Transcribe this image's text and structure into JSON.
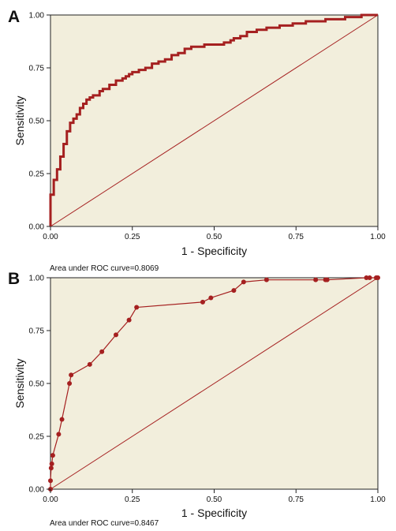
{
  "chart_data": [
    {
      "type": "line",
      "panel_label": "A",
      "xlabel": "1 - Specificity",
      "ylabel": "Sensitivity",
      "xlim": [
        0,
        1
      ],
      "ylim": [
        0,
        1
      ],
      "x_ticks": [
        "0.00",
        "0.25",
        "0.50",
        "0.75",
        "1.00"
      ],
      "y_ticks": [
        "0.00",
        "0.25",
        "0.50",
        "0.75",
        "1.00"
      ],
      "annotation": "Area under ROC curve=0.8069",
      "grid": false,
      "background_color": "#f2eedc",
      "curve_color": "#a52020",
      "reference_line": true,
      "step_curve": true,
      "series": [
        {
          "x": [
            0,
            0,
            0.01,
            0.01,
            0.02,
            0.02,
            0.03,
            0.03,
            0.04,
            0.04,
            0.05,
            0.05,
            0.06,
            0.06,
            0.07,
            0.08,
            0.09,
            0.1,
            0.11,
            0.12,
            0.13,
            0.15,
            0.16,
            0.18,
            0.2,
            0.22,
            0.23,
            0.24,
            0.25,
            0.27,
            0.29,
            0.31,
            0.33,
            0.35,
            0.37,
            0.39,
            0.41,
            0.43,
            0.45,
            0.47,
            0.49,
            0.51,
            0.53,
            0.55,
            0.56,
            0.58,
            0.6,
            0.63,
            0.66,
            0.7,
            0.74,
            0.78,
            0.84,
            0.9,
            0.95,
            1.0
          ],
          "y": [
            0,
            0.15,
            0.19,
            0.22,
            0.24,
            0.27,
            0.3,
            0.33,
            0.36,
            0.39,
            0.42,
            0.45,
            0.47,
            0.49,
            0.51,
            0.53,
            0.56,
            0.58,
            0.6,
            0.61,
            0.62,
            0.64,
            0.65,
            0.67,
            0.69,
            0.7,
            0.71,
            0.72,
            0.73,
            0.74,
            0.75,
            0.77,
            0.78,
            0.79,
            0.81,
            0.82,
            0.84,
            0.85,
            0.85,
            0.86,
            0.86,
            0.86,
            0.87,
            0.88,
            0.89,
            0.9,
            0.92,
            0.93,
            0.94,
            0.95,
            0.96,
            0.97,
            0.98,
            0.99,
            1.0,
            1.0
          ]
        }
      ]
    },
    {
      "type": "line",
      "panel_label": "B",
      "xlabel": "1 - Specificity",
      "ylabel": "Sensitivity",
      "xlim": [
        0,
        1
      ],
      "ylim": [
        0,
        1
      ],
      "x_ticks": [
        "0.00",
        "0.25",
        "0.50",
        "0.75",
        "1.00"
      ],
      "y_ticks": [
        "0.00",
        "0.25",
        "0.50",
        "0.75",
        "1.00"
      ],
      "annotation": "Area under ROC curve=0.8467",
      "grid": false,
      "background_color": "#f2eedc",
      "curve_color": "#a52020",
      "reference_line": true,
      "markers": true,
      "series": [
        {
          "x": [
            0,
            0,
            0.002,
            0.004,
            0.007,
            0.025,
            0.035,
            0.058,
            0.063,
            0.12,
            0.157,
            0.2,
            0.24,
            0.263,
            0.465,
            0.49,
            0.56,
            0.59,
            0.66,
            0.81,
            0.84,
            0.845,
            0.965,
            0.975,
            0.995,
            1.0
          ],
          "y": [
            0,
            0.04,
            0.1,
            0.12,
            0.16,
            0.26,
            0.33,
            0.5,
            0.54,
            0.59,
            0.65,
            0.73,
            0.8,
            0.86,
            0.885,
            0.905,
            0.94,
            0.98,
            0.99,
            0.99,
            0.99,
            0.99,
            1.0,
            1.0,
            1.0,
            1.0
          ]
        }
      ]
    }
  ]
}
